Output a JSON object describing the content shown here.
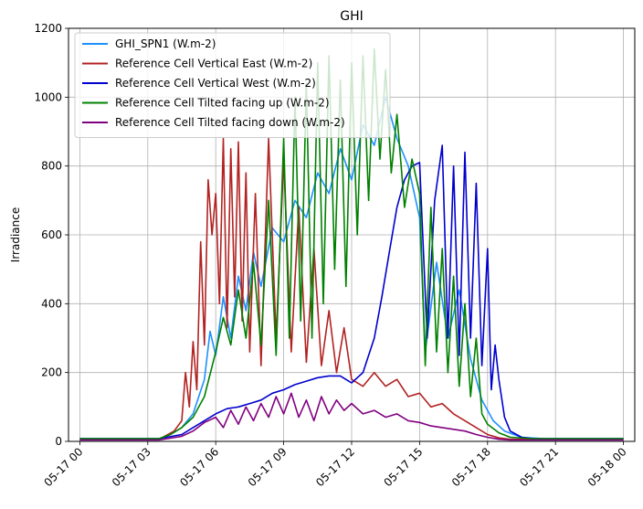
{
  "chart_data": {
    "type": "line",
    "title": "GHI",
    "xlabel": "",
    "ylabel": "Irradiance",
    "ylim": [
      0,
      1200
    ],
    "xlim": [
      "05-16 23:30",
      "05-18 00:30"
    ],
    "grid": true,
    "legend_position": "top-left",
    "x_ticks": [
      "05-17 00",
      "05-17 03",
      "05-17 06",
      "05-17 09",
      "05-17 12",
      "05-17 15",
      "05-17 18",
      "05-17 21",
      "05-18 00"
    ],
    "y_ticks": [
      0,
      200,
      400,
      600,
      800,
      1000,
      1200
    ],
    "series": [
      {
        "name": "GHI_SPN1 (W.m-2)",
        "color": "#1e90ff",
        "points": [
          [
            "05-17 00:00",
            8
          ],
          [
            "05-17 03:30",
            8
          ],
          [
            "05-17 04:00",
            20
          ],
          [
            "05-17 04:30",
            40
          ],
          [
            "05-17 05:00",
            80
          ],
          [
            "05-17 05:30",
            180
          ],
          [
            "05-17 05:45",
            320
          ],
          [
            "05-17 06:00",
            250
          ],
          [
            "05-17 06:20",
            420
          ],
          [
            "05-17 06:40",
            300
          ],
          [
            "05-17 07:00",
            480
          ],
          [
            "05-17 07:20",
            380
          ],
          [
            "05-17 07:40",
            550
          ],
          [
            "05-17 08:00",
            450
          ],
          [
            "05-17 08:30",
            620
          ],
          [
            "05-17 09:00",
            580
          ],
          [
            "05-17 09:30",
            700
          ],
          [
            "05-17 10:00",
            650
          ],
          [
            "05-17 10:30",
            780
          ],
          [
            "05-17 11:00",
            720
          ],
          [
            "05-17 11:30",
            850
          ],
          [
            "05-17 12:00",
            760
          ],
          [
            "05-17 12:30",
            920
          ],
          [
            "05-17 13:00",
            860
          ],
          [
            "05-17 13:30",
            1000
          ],
          [
            "05-17 14:00",
            880
          ],
          [
            "05-17 14:30",
            800
          ],
          [
            "05-17 15:00",
            650
          ],
          [
            "05-17 15:15",
            260
          ],
          [
            "05-17 15:45",
            520
          ],
          [
            "05-17 16:15",
            300
          ],
          [
            "05-17 16:45",
            440
          ],
          [
            "05-17 17:15",
            240
          ],
          [
            "05-17 17:45",
            120
          ],
          [
            "05-17 18:15",
            60
          ],
          [
            "05-17 18:45",
            30
          ],
          [
            "05-17 19:30",
            12
          ],
          [
            "05-17 20:30",
            8
          ],
          [
            "05-18 00:00",
            8
          ]
        ]
      },
      {
        "name": "Reference Cell Vertical East (W.m-2)",
        "color": "#b22222",
        "points": [
          [
            "05-17 00:00",
            6
          ],
          [
            "05-17 03:30",
            6
          ],
          [
            "05-17 04:10",
            30
          ],
          [
            "05-17 04:30",
            60
          ],
          [
            "05-17 04:40",
            200
          ],
          [
            "05-17 04:50",
            100
          ],
          [
            "05-17 05:00",
            290
          ],
          [
            "05-17 05:10",
            150
          ],
          [
            "05-17 05:20",
            580
          ],
          [
            "05-17 05:30",
            280
          ],
          [
            "05-17 05:40",
            760
          ],
          [
            "05-17 05:50",
            600
          ],
          [
            "05-17 06:00",
            720
          ],
          [
            "05-17 06:10",
            400
          ],
          [
            "05-17 06:20",
            880
          ],
          [
            "05-17 06:30",
            330
          ],
          [
            "05-17 06:40",
            850
          ],
          [
            "05-17 06:50",
            420
          ],
          [
            "05-17 07:00",
            870
          ],
          [
            "05-17 07:10",
            350
          ],
          [
            "05-17 07:20",
            780
          ],
          [
            "05-17 07:30",
            260
          ],
          [
            "05-17 07:45",
            720
          ],
          [
            "05-17 08:00",
            220
          ],
          [
            "05-17 08:20",
            880
          ],
          [
            "05-17 08:40",
            300
          ],
          [
            "05-17 09:00",
            820
          ],
          [
            "05-17 09:20",
            260
          ],
          [
            "05-17 09:40",
            680
          ],
          [
            "05-17 10:00",
            230
          ],
          [
            "05-17 10:20",
            560
          ],
          [
            "05-17 10:40",
            220
          ],
          [
            "05-17 11:00",
            380
          ],
          [
            "05-17 11:20",
            200
          ],
          [
            "05-17 11:40",
            330
          ],
          [
            "05-17 12:00",
            180
          ],
          [
            "05-17 12:30",
            160
          ],
          [
            "05-17 13:00",
            200
          ],
          [
            "05-17 13:30",
            160
          ],
          [
            "05-17 14:00",
            180
          ],
          [
            "05-17 14:30",
            130
          ],
          [
            "05-17 15:00",
            140
          ],
          [
            "05-17 15:30",
            100
          ],
          [
            "05-17 16:00",
            110
          ],
          [
            "05-17 16:30",
            80
          ],
          [
            "05-17 17:00",
            60
          ],
          [
            "05-17 17:30",
            40
          ],
          [
            "05-17 18:00",
            20
          ],
          [
            "05-17 18:30",
            10
          ],
          [
            "05-17 19:00",
            6
          ],
          [
            "05-18 00:00",
            6
          ]
        ]
      },
      {
        "name": "Reference Cell Vertical West (W.m-2)",
        "color": "#0000cd",
        "points": [
          [
            "05-17 00:00",
            8
          ],
          [
            "05-17 03:30",
            8
          ],
          [
            "05-17 04:30",
            20
          ],
          [
            "05-17 05:00",
            40
          ],
          [
            "05-17 05:30",
            60
          ],
          [
            "05-17 06:00",
            80
          ],
          [
            "05-17 06:30",
            95
          ],
          [
            "05-17 07:00",
            100
          ],
          [
            "05-17 07:30",
            110
          ],
          [
            "05-17 08:00",
            120
          ],
          [
            "05-17 08:30",
            140
          ],
          [
            "05-17 09:00",
            150
          ],
          [
            "05-17 09:30",
            165
          ],
          [
            "05-17 10:00",
            175
          ],
          [
            "05-17 10:30",
            185
          ],
          [
            "05-17 11:00",
            190
          ],
          [
            "05-17 11:30",
            190
          ],
          [
            "05-17 12:00",
            170
          ],
          [
            "05-17 12:30",
            200
          ],
          [
            "05-17 13:00",
            300
          ],
          [
            "05-17 13:20",
            420
          ],
          [
            "05-17 13:40",
            550
          ],
          [
            "05-17 14:00",
            680
          ],
          [
            "05-17 14:20",
            760
          ],
          [
            "05-17 14:40",
            800
          ],
          [
            "05-17 15:00",
            810
          ],
          [
            "05-17 15:20",
            300
          ],
          [
            "05-17 15:40",
            700
          ],
          [
            "05-17 16:00",
            860
          ],
          [
            "05-17 16:15",
            300
          ],
          [
            "05-17 16:30",
            800
          ],
          [
            "05-17 16:45",
            250
          ],
          [
            "05-17 17:00",
            840
          ],
          [
            "05-17 17:15",
            300
          ],
          [
            "05-17 17:30",
            750
          ],
          [
            "05-17 17:45",
            220
          ],
          [
            "05-17 18:00",
            560
          ],
          [
            "05-17 18:10",
            150
          ],
          [
            "05-17 18:20",
            280
          ],
          [
            "05-17 18:30",
            180
          ],
          [
            "05-17 18:45",
            70
          ],
          [
            "05-17 19:00",
            30
          ],
          [
            "05-17 19:30",
            12
          ],
          [
            "05-17 20:00",
            8
          ],
          [
            "05-18 00:00",
            8
          ]
        ]
      },
      {
        "name": "Reference Cell Tilted facing up (W.m-2)",
        "color": "#008000",
        "points": [
          [
            "05-17 00:00",
            8
          ],
          [
            "05-17 03:30",
            8
          ],
          [
            "05-17 04:00",
            20
          ],
          [
            "05-17 04:30",
            40
          ],
          [
            "05-17 05:00",
            70
          ],
          [
            "05-17 05:30",
            130
          ],
          [
            "05-17 06:00",
            260
          ],
          [
            "05-17 06:20",
            360
          ],
          [
            "05-17 06:40",
            280
          ],
          [
            "05-17 07:00",
            440
          ],
          [
            "05-17 07:20",
            300
          ],
          [
            "05-17 07:40",
            520
          ],
          [
            "05-17 08:00",
            280
          ],
          [
            "05-17 08:20",
            700
          ],
          [
            "05-17 08:40",
            250
          ],
          [
            "05-17 09:00",
            880
          ],
          [
            "05-17 09:15",
            300
          ],
          [
            "05-17 09:30",
            1000
          ],
          [
            "05-17 09:45",
            350
          ],
          [
            "05-17 10:00",
            1040
          ],
          [
            "05-17 10:15",
            300
          ],
          [
            "05-17 10:30",
            1100
          ],
          [
            "05-17 10:45",
            400
          ],
          [
            "05-17 11:00",
            1120
          ],
          [
            "05-17 11:15",
            500
          ],
          [
            "05-17 11:30",
            1050
          ],
          [
            "05-17 11:45",
            450
          ],
          [
            "05-17 12:00",
            1100
          ],
          [
            "05-17 12:15",
            600
          ],
          [
            "05-17 12:30",
            1120
          ],
          [
            "05-17 12:45",
            700
          ],
          [
            "05-17 13:00",
            1140
          ],
          [
            "05-17 13:15",
            820
          ],
          [
            "05-17 13:30",
            1080
          ],
          [
            "05-17 13:45",
            780
          ],
          [
            "05-17 14:00",
            950
          ],
          [
            "05-17 14:20",
            680
          ],
          [
            "05-17 14:40",
            820
          ],
          [
            "05-17 15:00",
            720
          ],
          [
            "05-17 15:15",
            220
          ],
          [
            "05-17 15:30",
            680
          ],
          [
            "05-17 15:45",
            260
          ],
          [
            "05-17 16:00",
            560
          ],
          [
            "05-17 16:15",
            200
          ],
          [
            "05-17 16:30",
            480
          ],
          [
            "05-17 16:45",
            160
          ],
          [
            "05-17 17:00",
            400
          ],
          [
            "05-17 17:15",
            130
          ],
          [
            "05-17 17:30",
            300
          ],
          [
            "05-17 17:45",
            80
          ],
          [
            "05-17 18:00",
            50
          ],
          [
            "05-17 18:30",
            25
          ],
          [
            "05-17 19:00",
            12
          ],
          [
            "05-17 20:00",
            8
          ],
          [
            "05-18 00:00",
            8
          ]
        ]
      },
      {
        "name": "Reference Cell Tilted facing down (W.m-2)",
        "color": "#800080",
        "points": [
          [
            "05-17 00:00",
            4
          ],
          [
            "05-17 03:30",
            4
          ],
          [
            "05-17 04:30",
            15
          ],
          [
            "05-17 05:00",
            30
          ],
          [
            "05-17 05:30",
            55
          ],
          [
            "05-17 06:00",
            70
          ],
          [
            "05-17 06:20",
            40
          ],
          [
            "05-17 06:40",
            90
          ],
          [
            "05-17 07:00",
            50
          ],
          [
            "05-17 07:20",
            100
          ],
          [
            "05-17 07:40",
            60
          ],
          [
            "05-17 08:00",
            110
          ],
          [
            "05-17 08:20",
            70
          ],
          [
            "05-17 08:40",
            130
          ],
          [
            "05-17 09:00",
            80
          ],
          [
            "05-17 09:20",
            140
          ],
          [
            "05-17 09:40",
            70
          ],
          [
            "05-17 10:00",
            120
          ],
          [
            "05-17 10:20",
            60
          ],
          [
            "05-17 10:40",
            130
          ],
          [
            "05-17 11:00",
            80
          ],
          [
            "05-17 11:20",
            120
          ],
          [
            "05-17 11:40",
            90
          ],
          [
            "05-17 12:00",
            110
          ],
          [
            "05-17 12:30",
            80
          ],
          [
            "05-17 13:00",
            90
          ],
          [
            "05-17 13:30",
            70
          ],
          [
            "05-17 14:00",
            80
          ],
          [
            "05-17 14:30",
            60
          ],
          [
            "05-17 15:00",
            55
          ],
          [
            "05-17 15:30",
            45
          ],
          [
            "05-17 16:00",
            40
          ],
          [
            "05-17 16:30",
            35
          ],
          [
            "05-17 17:00",
            30
          ],
          [
            "05-17 17:30",
            20
          ],
          [
            "05-17 18:00",
            12
          ],
          [
            "05-17 18:30",
            6
          ],
          [
            "05-17 19:00",
            4
          ],
          [
            "05-18 00:00",
            4
          ]
        ]
      }
    ]
  }
}
